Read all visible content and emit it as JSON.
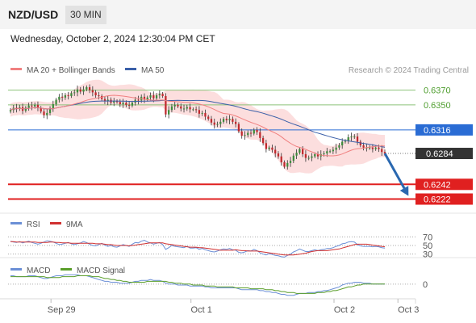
{
  "header": {
    "symbol": "NZD/USD",
    "timeframe": "30 MIN",
    "timestamp": "Wednesday, October 2, 2024 12:30:04 PM CET"
  },
  "legend": {
    "ma20_label": "MA 20 + Bollinger Bands",
    "ma50_label": "MA 50",
    "copyright": "Research © 2024 Trading Central",
    "rsi_label": "RSI",
    "rsi_ma_label": "9MA",
    "macd_label": "MACD",
    "macd_signal_label": "MACD Signal"
  },
  "colors": {
    "ma20": "#f08080",
    "ma50": "#3a5fa8",
    "bollinger_fill": "#fbd6d6",
    "candle_up": "#3c8c3c",
    "candle_down": "#c0282d",
    "resistance": "#8cc27a",
    "pivot": "#2a6cd4",
    "support": "#e02020",
    "arrow": "#2a68b0",
    "price_tag": "#333333",
    "rsi": "#6b8fd6",
    "rsi_ma": "#d03030",
    "macd": "#6b8fd6",
    "macd_signal": "#5a9e2a"
  },
  "chart_data": [
    {
      "type": "candlestick",
      "title": "NZD/USD",
      "price_min": 0.6205,
      "price_max": 0.6385,
      "x_ticks": [
        {
          "label": "Sep 29",
          "index": 8
        },
        {
          "label": "Oct 1",
          "index": 54
        },
        {
          "label": "Oct 2",
          "index": 101
        },
        {
          "label": "Oct 3",
          "index": 122
        }
      ],
      "levels": [
        {
          "label": "0.6370",
          "value": 0.637,
          "kind": "resistance"
        },
        {
          "label": "0.6350",
          "value": 0.635,
          "kind": "resistance"
        },
        {
          "label": "0.6316",
          "value": 0.6316,
          "kind": "pivot"
        },
        {
          "label": "0.6284",
          "value": 0.6284,
          "kind": "current"
        },
        {
          "label": "0.6242",
          "value": 0.6242,
          "kind": "support"
        },
        {
          "label": "0.6222",
          "value": 0.6222,
          "kind": "support"
        }
      ],
      "forecast": {
        "from_index": 123,
        "from_value": 0.6284,
        "to_index": 130,
        "to_value": 0.6232
      },
      "closes": [
        0.6343,
        0.6346,
        0.6345,
        0.6347,
        0.6342,
        0.6346,
        0.6349,
        0.6348,
        0.635,
        0.6346,
        0.6341,
        0.6336,
        0.6339,
        0.6345,
        0.6351,
        0.6357,
        0.6361,
        0.636,
        0.6363,
        0.6362,
        0.6366,
        0.6367,
        0.6371,
        0.6368,
        0.6371,
        0.6374,
        0.637,
        0.6367,
        0.6363,
        0.6362,
        0.6358,
        0.6355,
        0.6357,
        0.6353,
        0.6355,
        0.6354,
        0.6351,
        0.6353,
        0.635,
        0.6349,
        0.6353,
        0.6357,
        0.6356,
        0.6361,
        0.6357,
        0.636,
        0.6363,
        0.6359,
        0.6363,
        0.6365,
        0.6362,
        0.6337,
        0.6343,
        0.6348,
        0.635,
        0.6348,
        0.6345,
        0.6345,
        0.6347,
        0.6344,
        0.6344,
        0.6343,
        0.6338,
        0.6339,
        0.6334,
        0.6331,
        0.6326,
        0.6323,
        0.6324,
        0.6327,
        0.6331,
        0.6329,
        0.6331,
        0.6327,
        0.6324,
        0.6314,
        0.6308,
        0.6309,
        0.6312,
        0.6311,
        0.6316,
        0.6313,
        0.6305,
        0.6298,
        0.629,
        0.6292,
        0.6289,
        0.6284,
        0.628,
        0.6272,
        0.6266,
        0.6271,
        0.6274,
        0.6281,
        0.6285,
        0.629,
        0.6283,
        0.6278,
        0.6278,
        0.628,
        0.6283,
        0.628,
        0.6283,
        0.6284,
        0.6287,
        0.6287,
        0.6289,
        0.6292,
        0.6295,
        0.63,
        0.6301,
        0.6306,
        0.6307,
        0.6307,
        0.63,
        0.6295,
        0.6292,
        0.6292,
        0.6292,
        0.629,
        0.6292,
        0.629,
        0.6286,
        0.6284
      ]
    },
    {
      "type": "line",
      "title": "RSI",
      "y_ticks": [
        {
          "label": "70",
          "value": 70
        },
        {
          "label": "50",
          "value": 50
        },
        {
          "label": "30",
          "value": 30
        }
      ],
      "ylim": [
        20,
        80
      ],
      "series": [
        {
          "name": "RSI",
          "values": [
            60,
            58,
            57,
            59,
            56,
            58,
            60,
            57,
            55,
            53,
            55,
            58,
            61,
            60,
            58,
            55,
            52,
            53,
            55,
            57,
            54,
            52,
            54,
            56,
            59,
            57,
            53,
            50,
            49,
            52,
            55,
            51,
            48,
            50,
            47,
            46,
            49,
            52,
            50,
            48,
            53,
            57,
            56,
            60,
            62,
            58,
            56,
            53,
            55,
            57,
            52,
            41,
            45,
            50,
            48,
            47,
            46,
            45,
            48,
            44,
            44,
            45,
            41,
            43,
            40,
            38,
            36,
            35,
            37,
            40,
            42,
            41,
            43,
            40,
            39,
            34,
            33,
            35,
            38,
            37,
            41,
            38,
            33,
            30,
            28,
            31,
            29,
            27,
            26,
            24,
            23,
            27,
            30,
            35,
            38,
            42,
            39,
            36,
            36,
            38,
            40,
            38,
            40,
            41,
            43,
            43,
            45,
            48,
            50,
            54,
            55,
            58,
            59,
            58,
            52,
            49,
            48,
            48,
            48,
            47,
            48,
            47,
            45,
            44
          ]
        },
        {
          "name": "9MA",
          "values": [
            59,
            59,
            58,
            58,
            58,
            58,
            58,
            58,
            58,
            57,
            57,
            57,
            57,
            58,
            58,
            57,
            57,
            56,
            56,
            56,
            55,
            55,
            55,
            55,
            55,
            55,
            55,
            55,
            54,
            54,
            54,
            53,
            52,
            52,
            51,
            50,
            50,
            50,
            50,
            49,
            50,
            51,
            52,
            53,
            54,
            55,
            56,
            56,
            56,
            56,
            56,
            54,
            53,
            52,
            51,
            50,
            49,
            48,
            47,
            46,
            46,
            46,
            45,
            45,
            44,
            43,
            42,
            41,
            40,
            39,
            39,
            39,
            39,
            39,
            40,
            39,
            38,
            38,
            37,
            37,
            37,
            37,
            36,
            35,
            34,
            33,
            32,
            31,
            30,
            29,
            28,
            28,
            28,
            28,
            29,
            30,
            31,
            32,
            34,
            36,
            37,
            38,
            38,
            38,
            38,
            39,
            40,
            41,
            42,
            44,
            46,
            48,
            50,
            52,
            53,
            53,
            53,
            53,
            52,
            51,
            50,
            49,
            48,
            47
          ]
        }
      ]
    },
    {
      "type": "line",
      "title": "MACD",
      "y_ticks": [
        {
          "label": "0",
          "value": 0
        }
      ],
      "ylim": [
        -14,
        12
      ],
      "series": [
        {
          "name": "MACD",
          "values": [
            9,
            9,
            8,
            8,
            8,
            8,
            9,
            9,
            9,
            8,
            7,
            6,
            6,
            7,
            8,
            9,
            9,
            9,
            10,
            10,
            10,
            10,
            10,
            9,
            9,
            9,
            8,
            7,
            6,
            5,
            4,
            3,
            3,
            2,
            2,
            2,
            1,
            1,
            1,
            1,
            2,
            3,
            3,
            4,
            4,
            4,
            5,
            4,
            4,
            4,
            3,
            1,
            0,
            0,
            0,
            -1,
            -1,
            -1,
            -1,
            -2,
            -2,
            -2,
            -2,
            -2,
            -3,
            -3,
            -4,
            -4,
            -4,
            -4,
            -4,
            -4,
            -4,
            -4,
            -4,
            -5,
            -6,
            -6,
            -6,
            -6,
            -6,
            -6,
            -7,
            -7,
            -8,
            -8,
            -9,
            -9,
            -10,
            -11,
            -11,
            -12,
            -12,
            -12,
            -11,
            -10,
            -10,
            -10,
            -9,
            -9,
            -9,
            -8,
            -8,
            -7,
            -7,
            -6,
            -5,
            -4,
            -3,
            -1,
            0,
            1,
            1,
            2,
            2,
            2,
            1,
            1,
            1,
            0,
            0,
            0,
            0,
            0
          ]
        },
        {
          "name": "MACD Signal",
          "values": [
            8,
            8,
            8,
            8,
            8,
            8,
            8,
            8,
            8,
            8,
            8,
            8,
            7,
            7,
            7,
            7,
            7,
            8,
            8,
            8,
            8,
            8,
            9,
            9,
            9,
            9,
            9,
            8,
            8,
            8,
            7,
            6,
            6,
            5,
            5,
            4,
            4,
            3,
            3,
            2,
            2,
            2,
            2,
            2,
            2,
            3,
            3,
            3,
            3,
            3,
            3,
            3,
            2,
            2,
            1,
            1,
            1,
            0,
            0,
            0,
            -1,
            -1,
            -1,
            -1,
            -2,
            -2,
            -2,
            -2,
            -3,
            -3,
            -3,
            -3,
            -3,
            -3,
            -4,
            -4,
            -4,
            -4,
            -4,
            -5,
            -5,
            -5,
            -5,
            -5,
            -6,
            -6,
            -6,
            -7,
            -7,
            -8,
            -8,
            -9,
            -9,
            -9,
            -10,
            -10,
            -10,
            -10,
            -10,
            -10,
            -10,
            -9,
            -9,
            -9,
            -8,
            -8,
            -7,
            -7,
            -6,
            -5,
            -4,
            -3,
            -3,
            -2,
            -1,
            -1,
            0,
            0,
            0,
            0,
            0,
            0,
            0,
            0
          ]
        }
      ]
    }
  ]
}
